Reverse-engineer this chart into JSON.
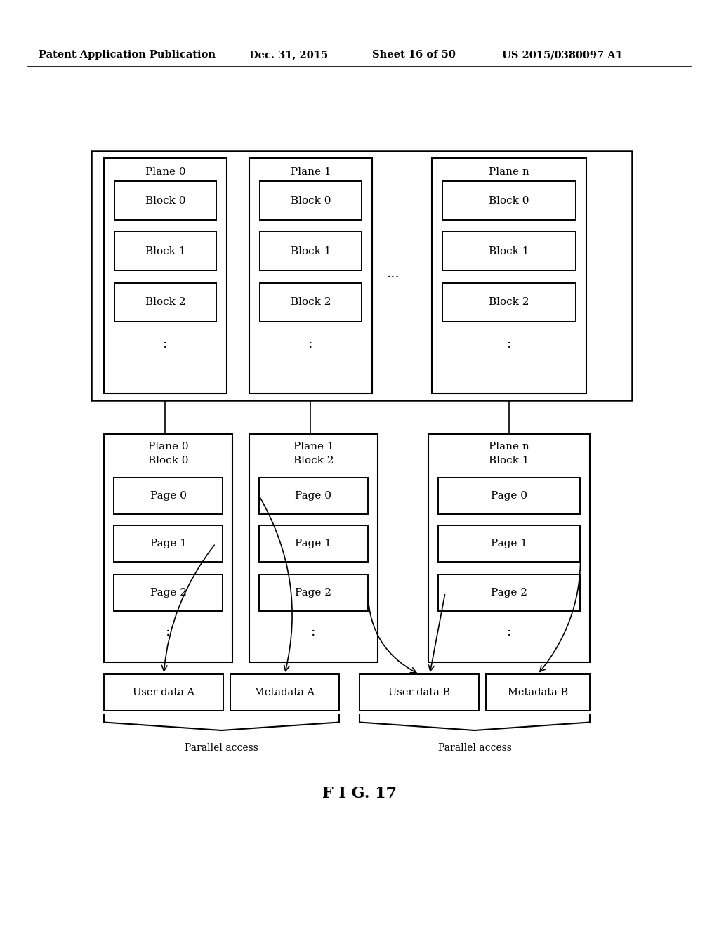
{
  "bg_color": "#ffffff",
  "header_text": "Patent Application Publication",
  "header_date": "Dec. 31, 2015",
  "header_sheet": "Sheet 16 of 50",
  "header_patent": "US 2015/0380097 A1",
  "fig_label": "F I G. 17",
  "planes_top": [
    "Plane 0",
    "Plane 1",
    "Plane n"
  ],
  "blocks_top": [
    [
      "Block 0",
      "Block 1",
      "Block 2"
    ],
    [
      "Block 0",
      "Block 1",
      "Block 2"
    ],
    [
      "Block 0",
      "Block 1",
      "Block 2"
    ]
  ],
  "planes_bottom_line1": [
    "Plane 0",
    "Plane 1",
    "Plane n"
  ],
  "planes_bottom_line2": [
    "Block 0",
    "Block 2",
    "Block 1"
  ],
  "pages_bottom": [
    [
      "Page 0",
      "Page 1",
      "Page 2"
    ],
    [
      "Page 0",
      "Page 1",
      "Page 2"
    ],
    [
      "Page 0",
      "Page 1",
      "Page 2"
    ]
  ],
  "bottom_boxes": [
    "User data A",
    "Metadata A",
    "User data B",
    "Metadata B"
  ],
  "parallel_labels": [
    "Parallel access",
    "Parallel access"
  ]
}
